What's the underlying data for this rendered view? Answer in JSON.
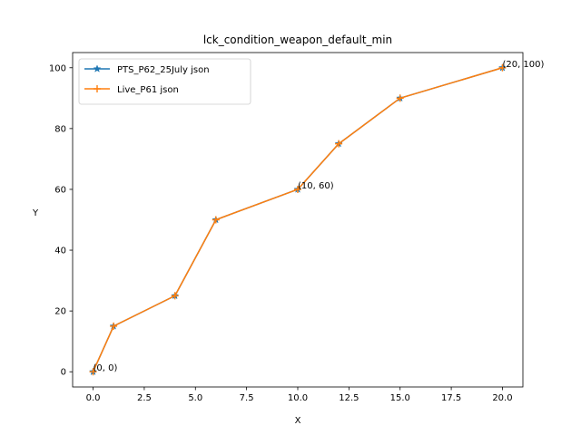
{
  "chart_data": {
    "type": "line",
    "title": "lck_condition_weapon_default_min",
    "xlabel": "X",
    "ylabel": "Y",
    "xlim": [
      -1,
      21
    ],
    "ylim": [
      -5,
      105
    ],
    "xticks": [
      0.0,
      2.5,
      5.0,
      7.5,
      10.0,
      12.5,
      15.0,
      17.5,
      20.0
    ],
    "xtick_labels": [
      "0.0",
      "2.5",
      "5.0",
      "7.5",
      "10.0",
      "12.5",
      "15.0",
      "17.5",
      "20.0"
    ],
    "yticks": [
      0,
      20,
      40,
      60,
      80,
      100
    ],
    "ytick_labels": [
      "0",
      "20",
      "40",
      "60",
      "80",
      "100"
    ],
    "grid": false,
    "legend_position": "top-left",
    "series": [
      {
        "name": "PTS_P62_25July json",
        "color": "#1f77b4",
        "marker": "star",
        "x": [
          0,
          1,
          4,
          6,
          10,
          12,
          15,
          20
        ],
        "y": [
          0,
          15,
          25,
          50,
          60,
          75,
          90,
          100
        ]
      },
      {
        "name": "Live_P61 json",
        "color": "#ff7f0e",
        "marker": "plus",
        "x": [
          0,
          1,
          4,
          6,
          10,
          12,
          15,
          20
        ],
        "y": [
          0,
          15,
          25,
          50,
          60,
          75,
          90,
          100
        ]
      }
    ],
    "annotations": [
      {
        "x": 0,
        "y": 0,
        "text": "(0, 0)"
      },
      {
        "x": 10,
        "y": 60,
        "text": "(10, 60)"
      },
      {
        "x": 20,
        "y": 100,
        "text": "(20, 100)"
      }
    ]
  }
}
